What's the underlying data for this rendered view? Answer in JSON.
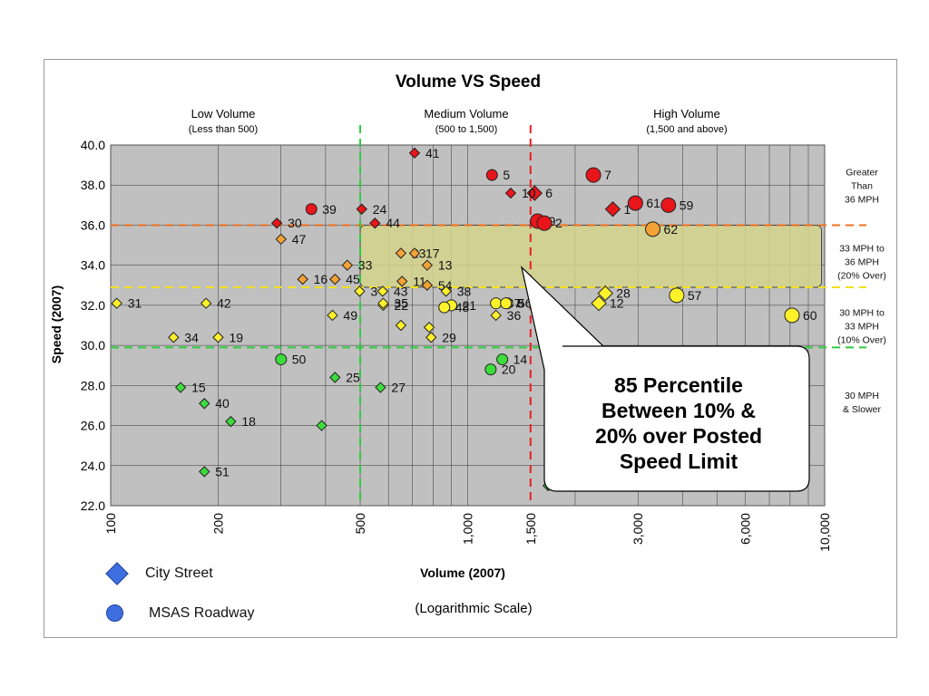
{
  "chart_data": {
    "type": "scatter",
    "title": "Volume VS Speed",
    "xlabel": "Volume (2007)",
    "xlabel_note": "(Logarithmic Scale)",
    "ylabel": "Speed (2007)",
    "x_scale": "log",
    "xlim": [
      100,
      10000
    ],
    "ylim": [
      22,
      40
    ],
    "x_ticks": [
      100,
      200,
      500,
      1000,
      1500,
      3000,
      6000,
      10000
    ],
    "x_tick_labels": [
      "100",
      "200",
      "500",
      "1,000",
      "1,500",
      "3,000",
      "6,000",
      "10,000"
    ],
    "y_ticks": [
      22,
      24,
      26,
      28,
      30,
      32,
      34,
      36,
      38,
      40
    ],
    "y_tick_labels": [
      "22.0",
      "24.0",
      "26.0",
      "28.0",
      "30.0",
      "32.0",
      "34.0",
      "36.0",
      "38.0",
      "40.0"
    ],
    "grid": true,
    "volume_bands": [
      {
        "title": "Low Volume",
        "subtitle": "(Less than 500)"
      },
      {
        "title": "Medium Volume",
        "subtitle": "(500 to 1,500)"
      },
      {
        "title": "High Volume",
        "subtitle": "(1,500 and above)"
      }
    ],
    "speed_bands": [
      {
        "label": "Greater Than 36 MPH",
        "lines": [
          "Greater",
          "Than",
          "36 MPH"
        ],
        "y": 37.8
      },
      {
        "label": "33 MPH to 36 MPH (20% Over)",
        "lines": [
          "33 MPH to",
          "36 MPH",
          "(20% Over)"
        ],
        "y": 34.0
      },
      {
        "label": "30 MPH to 33 MPH (10% Over)",
        "lines": [
          "30 MPH to",
          "33 MPH",
          "(10% Over)"
        ],
        "y": 30.8
      },
      {
        "label": "30 MPH & Slower",
        "lines": [
          "30 MPH",
          "& Slower"
        ],
        "y": 27.0
      }
    ],
    "reference_lines": [
      {
        "axis": "y",
        "value": 36.0,
        "color": "#f07020"
      },
      {
        "axis": "y",
        "value": 32.9,
        "color": "#f2e020"
      },
      {
        "axis": "y",
        "value": 29.9,
        "color": "#2ecc40"
      },
      {
        "axis": "x",
        "value": 500,
        "color": "#2ecc40"
      },
      {
        "axis": "x",
        "value": 1500,
        "color": "#e62020"
      }
    ],
    "highlight_region": {
      "x": [
        500,
        9800
      ],
      "y": [
        32.9,
        36.0
      ]
    },
    "callout": "85 Percentile\nBetween 10% &\n20% over Posted\nSpeed Limit",
    "legend": [
      {
        "label": "City Street",
        "marker": "diamond"
      },
      {
        "label": "MSAS Roadway",
        "marker": "circle"
      }
    ],
    "colors": {
      "red": "#e8151b",
      "orange": "#f4a236",
      "yellow": "#fff22a",
      "green": "#3bdc3b",
      "plot_bg": "#c0c0c0",
      "highlight": "#d4d48c"
    },
    "points": [
      {
        "id": "41",
        "x": 710,
        "y": 39.6,
        "marker": "diamond",
        "color": "red"
      },
      {
        "id": "5",
        "x": 1170,
        "y": 38.5,
        "marker": "circle",
        "color": "red"
      },
      {
        "id": "6",
        "x": 1540,
        "y": 37.6,
        "marker": "diamond",
        "color": "red"
      },
      {
        "id": "10",
        "x": 1320,
        "y": 37.6,
        "marker": "diamond",
        "color": "red"
      },
      {
        "id": "7",
        "x": 2250,
        "y": 38.5,
        "marker": "circle",
        "color": "red"
      },
      {
        "id": "61",
        "x": 2950,
        "y": 37.1,
        "marker": "circle",
        "color": "red"
      },
      {
        "id": "1",
        "x": 2550,
        "y": 36.8,
        "marker": "diamond",
        "color": "red"
      },
      {
        "id": "59",
        "x": 3650,
        "y": 37.0,
        "marker": "circle",
        "color": "red"
      },
      {
        "id": "9",
        "x": 1570,
        "y": 36.2,
        "marker": "circle",
        "color": "red"
      },
      {
        "id": "2",
        "x": 1640,
        "y": 36.1,
        "marker": "circle",
        "color": "red"
      },
      {
        "id": "39",
        "x": 365,
        "y": 36.8,
        "marker": "circle",
        "color": "red"
      },
      {
        "id": "24",
        "x": 505,
        "y": 36.8,
        "marker": "diamond",
        "color": "red"
      },
      {
        "id": "30",
        "x": 292,
        "y": 36.1,
        "marker": "diamond",
        "color": "red"
      },
      {
        "id": "44",
        "x": 550,
        "y": 36.1,
        "marker": "diamond",
        "color": "red"
      },
      {
        "id": "47",
        "x": 300,
        "y": 35.3,
        "marker": "diamond",
        "color": "orange"
      },
      {
        "id": "62",
        "x": 3300,
        "y": 35.8,
        "marker": "circle",
        "color": "orange"
      },
      {
        "id": "33",
        "x": 460,
        "y": 34.0,
        "marker": "diamond",
        "color": "orange"
      },
      {
        "id": "16",
        "x": 345,
        "y": 33.3,
        "marker": "diamond",
        "color": "orange"
      },
      {
        "id": "45",
        "x": 425,
        "y": 33.3,
        "marker": "diamond",
        "color": "orange"
      },
      {
        "id": "23",
        "x": 650,
        "y": 34.6,
        "marker": "diamond",
        "color": "orange"
      },
      {
        "id": "17",
        "x": 710,
        "y": 34.6,
        "marker": "diamond",
        "color": "orange"
      },
      {
        "id": "13",
        "x": 770,
        "y": 34.0,
        "marker": "diamond",
        "color": "orange"
      },
      {
        "id": "11",
        "x": 655,
        "y": 33.2,
        "marker": "diamond",
        "color": "orange"
      },
      {
        "id": "54",
        "x": 770,
        "y": 33.0,
        "marker": "diamond",
        "color": "orange"
      },
      {
        "id": "3",
        "x": 498,
        "y": 32.7,
        "marker": "diamond",
        "color": "yellow"
      },
      {
        "id": "43",
        "x": 578,
        "y": 32.7,
        "marker": "diamond",
        "color": "yellow"
      },
      {
        "id": "38",
        "x": 870,
        "y": 32.7,
        "marker": "diamond",
        "color": "yellow"
      },
      {
        "id": "37",
        "x": 1200,
        "y": 32.1,
        "marker": "circle",
        "color": "yellow"
      },
      {
        "id": "56",
        "x": 1290,
        "y": 32.1,
        "marker": "circle",
        "color": "yellow"
      },
      {
        "id": "21",
        "x": 900,
        "y": 32.0,
        "marker": "circle",
        "color": "yellow"
      },
      {
        "id": "8",
        "x": 1280,
        "y": 32.1,
        "marker": "circle",
        "color": "yellow"
      },
      {
        "id": "22",
        "x": 580,
        "y": 32.0,
        "marker": "diamond",
        "color": "yellow"
      },
      {
        "id": "48",
        "x": 860,
        "y": 31.9,
        "marker": "circle",
        "color": "yellow"
      },
      {
        "id": "36",
        "x": 1200,
        "y": 31.5,
        "marker": "diamond",
        "color": "yellow"
      },
      {
        "id": "42",
        "x": 185,
        "y": 32.1,
        "marker": "diamond",
        "color": "yellow"
      },
      {
        "id": "31",
        "x": 104,
        "y": 32.1,
        "marker": "diamond",
        "color": "yellow"
      },
      {
        "id": "49",
        "x": 418,
        "y": 31.5,
        "marker": "diamond",
        "color": "yellow"
      },
      {
        "id": "35",
        "x": 580,
        "y": 32.1,
        "marker": "diamond",
        "color": "yellow"
      },
      {
        "id": "28",
        "x": 2430,
        "y": 32.6,
        "marker": "diamond",
        "color": "yellow"
      },
      {
        "id": "12",
        "x": 2330,
        "y": 32.1,
        "marker": "diamond",
        "color": "yellow"
      },
      {
        "id": "57",
        "x": 3850,
        "y": 32.5,
        "marker": "circle",
        "color": "yellow"
      },
      {
        "id": "60",
        "x": 8100,
        "y": 31.5,
        "marker": "circle",
        "color": "yellow"
      },
      {
        "id": "34",
        "x": 150,
        "y": 30.4,
        "marker": "diamond",
        "color": "yellow"
      },
      {
        "id": "19",
        "x": 200,
        "y": 30.4,
        "marker": "diamond",
        "color": "yellow"
      },
      {
        "id": "29",
        "x": 790,
        "y": 30.4,
        "marker": "diamond",
        "color": "yellow"
      },
      {
        "id": "",
        "x": 650,
        "y": 31.0,
        "marker": "diamond",
        "color": "yellow"
      },
      {
        "id": "",
        "x": 780,
        "y": 30.9,
        "marker": "diamond",
        "color": "yellow"
      },
      {
        "id": "",
        "x": 1680,
        "y": 31.0,
        "marker": "diamond",
        "color": "yellow"
      },
      {
        "id": "50",
        "x": 300,
        "y": 29.3,
        "marker": "circle",
        "color": "green"
      },
      {
        "id": "25",
        "x": 425,
        "y": 28.4,
        "marker": "diamond",
        "color": "green"
      },
      {
        "id": "27",
        "x": 570,
        "y": 27.9,
        "marker": "diamond",
        "color": "green"
      },
      {
        "id": "14",
        "x": 1250,
        "y": 29.3,
        "marker": "circle",
        "color": "green"
      },
      {
        "id": "20",
        "x": 1160,
        "y": 28.8,
        "marker": "circle",
        "color": "green"
      },
      {
        "id": "15",
        "x": 157,
        "y": 27.9,
        "marker": "diamond",
        "color": "green"
      },
      {
        "id": "40",
        "x": 183,
        "y": 27.1,
        "marker": "diamond",
        "color": "green"
      },
      {
        "id": "18",
        "x": 217,
        "y": 26.2,
        "marker": "diamond",
        "color": "green"
      },
      {
        "id": "",
        "x": 390,
        "y": 26.0,
        "marker": "diamond",
        "color": "green"
      },
      {
        "id": "51",
        "x": 183,
        "y": 23.7,
        "marker": "diamond",
        "color": "green"
      },
      {
        "id": "",
        "x": 1680,
        "y": 23.0,
        "marker": "diamond",
        "color": "green"
      }
    ]
  }
}
